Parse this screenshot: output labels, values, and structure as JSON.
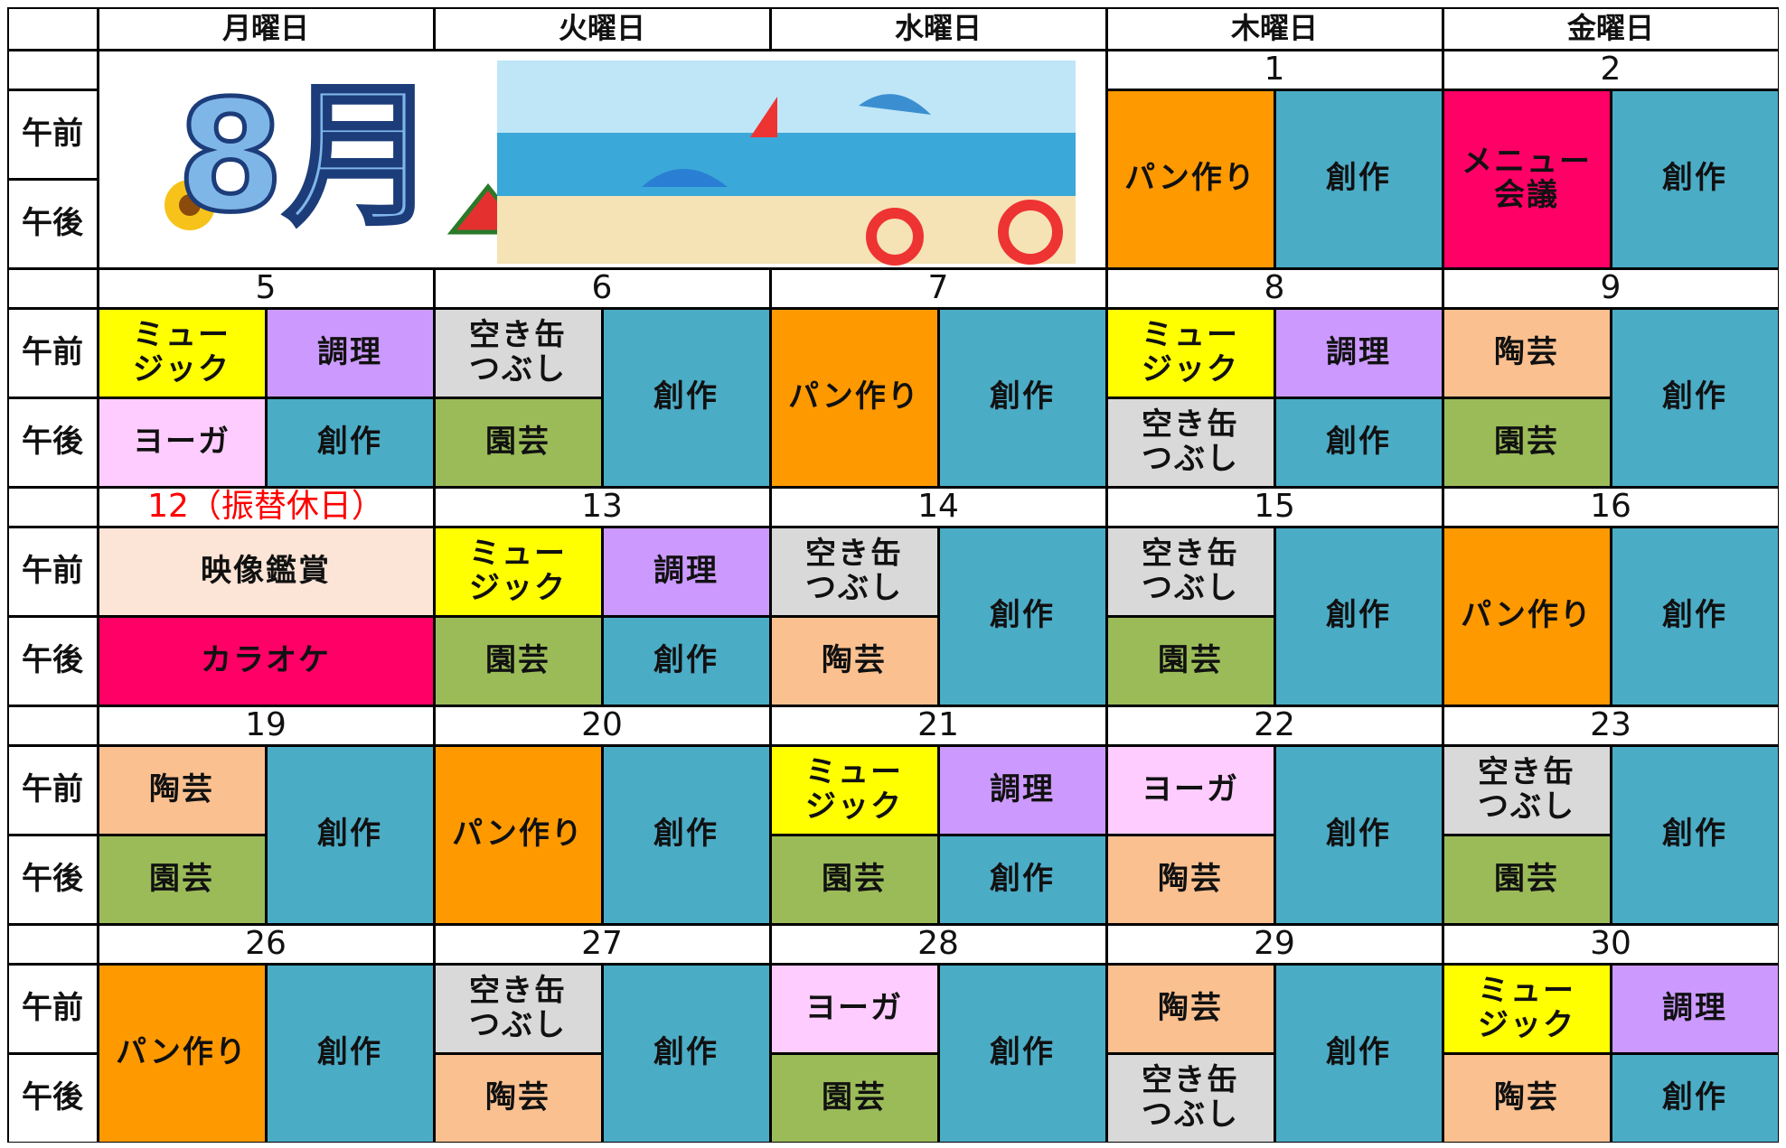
{
  "weekdays": [
    "月曜日",
    "火曜日",
    "水曜日",
    "木曜日",
    "金曜日"
  ],
  "periods": [
    "午前",
    "午後"
  ],
  "banner": {
    "title": "8月"
  },
  "weeks": [
    {
      "days": [
        {
          "date": "1",
          "left": [
            {
              "text": "パン作り",
              "color": "#ff9900"
            }
          ],
          "right": [
            {
              "text": "創作",
              "color": "#4bacc6"
            }
          ]
        },
        {
          "date": "2",
          "left": [
            {
              "text": "メニュー\n会議",
              "color": "#ff0066"
            }
          ],
          "right": [
            {
              "text": "創作",
              "color": "#4bacc6"
            }
          ]
        }
      ]
    },
    {
      "days": [
        {
          "date": "5",
          "left": [
            {
              "text": "ミュー\nジック",
              "color": "#ffff00"
            },
            {
              "text": "ヨーガ",
              "color": "#ffccff"
            }
          ],
          "right": [
            {
              "text": "調理",
              "color": "#cc99ff"
            },
            {
              "text": "創作",
              "color": "#4bacc6"
            }
          ]
        },
        {
          "date": "6",
          "left": [
            {
              "text": "空き缶\nつぶし",
              "color": "#d9d9d9"
            },
            {
              "text": "園芸",
              "color": "#9bbb59"
            }
          ],
          "right": [
            {
              "text": "創作",
              "color": "#4bacc6"
            }
          ]
        },
        {
          "date": "7",
          "left": [
            {
              "text": "パン作り",
              "color": "#ff9900"
            }
          ],
          "right": [
            {
              "text": "創作",
              "color": "#4bacc6"
            }
          ]
        },
        {
          "date": "8",
          "left": [
            {
              "text": "ミュー\nジック",
              "color": "#ffff00"
            },
            {
              "text": "空き缶\nつぶし",
              "color": "#d9d9d9"
            }
          ],
          "right": [
            {
              "text": "調理",
              "color": "#cc99ff"
            },
            {
              "text": "創作",
              "color": "#4bacc6"
            }
          ]
        },
        {
          "date": "9",
          "left": [
            {
              "text": "陶芸",
              "color": "#fac090"
            },
            {
              "text": "園芸",
              "color": "#9bbb59"
            }
          ],
          "right": [
            {
              "text": "創作",
              "color": "#4bacc6"
            }
          ]
        }
      ]
    },
    {
      "days": [
        {
          "date": "12（振替休日）",
          "date_color": "#ff0000",
          "full": [
            {
              "text": "映像鑑賞",
              "color": "#fce4d6"
            },
            {
              "text": "カラオケ",
              "color": "#ff0066"
            }
          ]
        },
        {
          "date": "13",
          "left": [
            {
              "text": "ミュー\nジック",
              "color": "#ffff00"
            },
            {
              "text": "園芸",
              "color": "#9bbb59"
            }
          ],
          "right": [
            {
              "text": "調理",
              "color": "#cc99ff"
            },
            {
              "text": "創作",
              "color": "#4bacc6"
            }
          ]
        },
        {
          "date": "14",
          "left": [
            {
              "text": "空き缶\nつぶし",
              "color": "#d9d9d9"
            },
            {
              "text": "陶芸",
              "color": "#fac090"
            }
          ],
          "right": [
            {
              "text": "創作",
              "color": "#4bacc6"
            }
          ]
        },
        {
          "date": "15",
          "left": [
            {
              "text": "空き缶\nつぶし",
              "color": "#d9d9d9"
            },
            {
              "text": "園芸",
              "color": "#9bbb59"
            }
          ],
          "right": [
            {
              "text": "創作",
              "color": "#4bacc6"
            }
          ]
        },
        {
          "date": "16",
          "left": [
            {
              "text": "パン作り",
              "color": "#ff9900"
            }
          ],
          "right": [
            {
              "text": "創作",
              "color": "#4bacc6"
            }
          ]
        }
      ]
    },
    {
      "days": [
        {
          "date": "19",
          "left": [
            {
              "text": "陶芸",
              "color": "#fac090"
            },
            {
              "text": "園芸",
              "color": "#9bbb59"
            }
          ],
          "right": [
            {
              "text": "創作",
              "color": "#4bacc6"
            }
          ]
        },
        {
          "date": "20",
          "left": [
            {
              "text": "パン作り",
              "color": "#ff9900"
            }
          ],
          "right": [
            {
              "text": "創作",
              "color": "#4bacc6"
            }
          ]
        },
        {
          "date": "21",
          "left": [
            {
              "text": "ミュー\nジック",
              "color": "#ffff00"
            },
            {
              "text": "園芸",
              "color": "#9bbb59"
            }
          ],
          "right": [
            {
              "text": "調理",
              "color": "#cc99ff"
            },
            {
              "text": "創作",
              "color": "#4bacc6"
            }
          ]
        },
        {
          "date": "22",
          "left": [
            {
              "text": "ヨーガ",
              "color": "#ffccff"
            },
            {
              "text": "陶芸",
              "color": "#fac090"
            }
          ],
          "right": [
            {
              "text": "創作",
              "color": "#4bacc6"
            }
          ]
        },
        {
          "date": "23",
          "left": [
            {
              "text": "空き缶\nつぶし",
              "color": "#d9d9d9"
            },
            {
              "text": "園芸",
              "color": "#9bbb59"
            }
          ],
          "right": [
            {
              "text": "創作",
              "color": "#4bacc6"
            }
          ]
        }
      ]
    },
    {
      "days": [
        {
          "date": "26",
          "left": [
            {
              "text": "パン作り",
              "color": "#ff9900"
            }
          ],
          "right": [
            {
              "text": "創作",
              "color": "#4bacc6"
            }
          ]
        },
        {
          "date": "27",
          "left": [
            {
              "text": "空き缶\nつぶし",
              "color": "#d9d9d9"
            },
            {
              "text": "陶芸",
              "color": "#fac090"
            }
          ],
          "right": [
            {
              "text": "創作",
              "color": "#4bacc6"
            }
          ]
        },
        {
          "date": "28",
          "left": [
            {
              "text": "ヨーガ",
              "color": "#ffccff"
            },
            {
              "text": "園芸",
              "color": "#9bbb59"
            }
          ],
          "right": [
            {
              "text": "創作",
              "color": "#4bacc6"
            }
          ]
        },
        {
          "date": "29",
          "left": [
            {
              "text": "陶芸",
              "color": "#fac090"
            },
            {
              "text": "空き缶\nつぶし",
              "color": "#d9d9d9"
            }
          ],
          "right": [
            {
              "text": "創作",
              "color": "#4bacc6"
            }
          ]
        },
        {
          "date": "30",
          "left": [
            {
              "text": "ミュー\nジック",
              "color": "#ffff00"
            },
            {
              "text": "陶芸",
              "color": "#fac090"
            }
          ],
          "right": [
            {
              "text": "調理",
              "color": "#cc99ff"
            },
            {
              "text": "創作",
              "color": "#4bacc6"
            }
          ]
        }
      ]
    }
  ]
}
